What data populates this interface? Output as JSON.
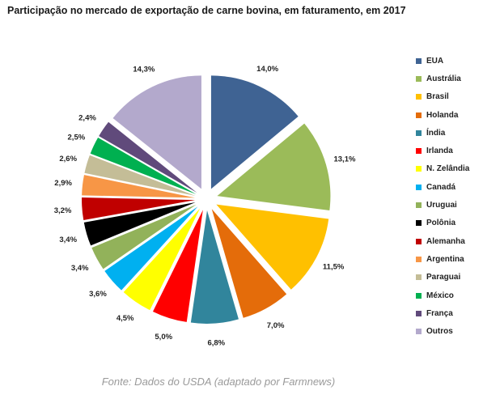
{
  "chart_data": {
    "type": "pie",
    "title": "Participação  no mercado de exportação de carne bovina, em faturamento, em  2017",
    "categories": [
      "EUA",
      "Austrália",
      "Brasil",
      "Holanda",
      "Índia",
      "Irlanda",
      "N. Zelândia",
      "Canadá",
      "Uruguai",
      "Polônia",
      "Alemanha",
      "Argentina",
      "Paraguai",
      "México",
      "França",
      "Outros"
    ],
    "values": [
      14.0,
      13.1,
      11.5,
      7.0,
      6.8,
      5.0,
      4.5,
      3.6,
      3.4,
      3.4,
      3.2,
      2.9,
      2.6,
      2.5,
      2.4,
      14.3
    ],
    "value_labels": [
      "14,0%",
      "13,1%",
      "11,5%",
      "7,0%",
      "6,8%",
      "5,0%",
      "4,5%",
      "3,6%",
      "3,4%",
      "3,4%",
      "3,2%",
      "2,9%",
      "2,6%",
      "2,5%",
      "2,4%",
      "14,3%"
    ],
    "colors": [
      "#3f6393",
      "#9bbb59",
      "#ffc000",
      "#e46c0a",
      "#31859c",
      "#ff0000",
      "#ffff00",
      "#00b0f0",
      "#92b25a",
      "#000000",
      "#c00000",
      "#f79646",
      "#c4bd97",
      "#00b050",
      "#604a7b",
      "#b3a9cc"
    ],
    "legend_position": "right",
    "exploded": true
  },
  "source": "Fonte: Dados do USDA (adaptado por Farmnews)"
}
